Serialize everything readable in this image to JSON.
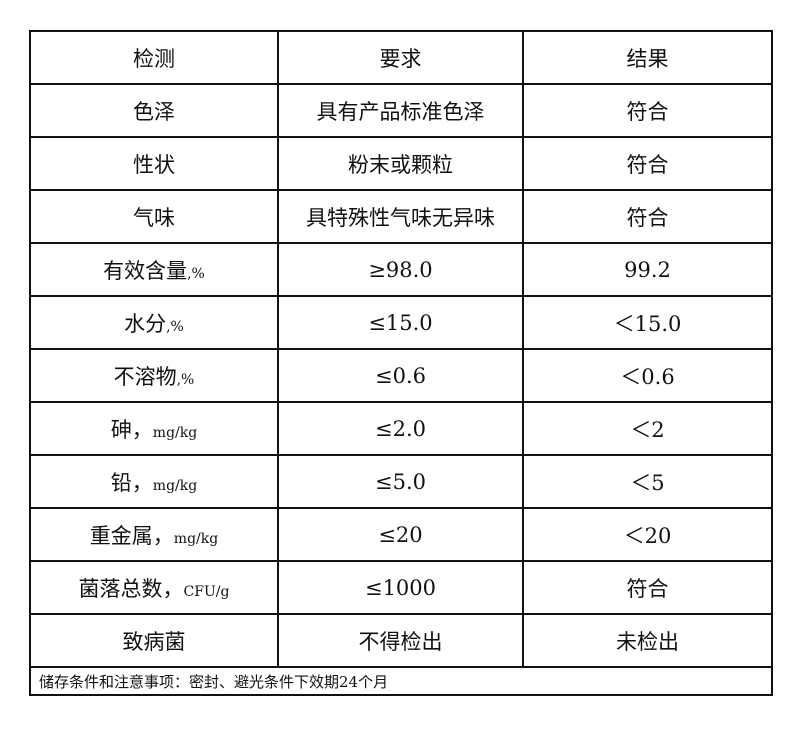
{
  "header": [
    "检测",
    "要求",
    "结果"
  ],
  "rows": [
    {
      "item": "色泽",
      "unit": "",
      "req": "具有产品标准色泽",
      "res": "符合"
    },
    {
      "item": "性状",
      "unit": "",
      "req": "粉末或颗粒",
      "res": "符合"
    },
    {
      "item": "气味",
      "unit": "",
      "req": "具特殊性气味无异味",
      "res": "符合"
    },
    {
      "item": "有效含量",
      "unit": ",%",
      "req": "≥98.0",
      "res": "99.2"
    },
    {
      "item": "水分",
      "unit": ",%",
      "req": "≤15.0",
      "res": "＜15.0"
    },
    {
      "item": "不溶物",
      "unit": ",%",
      "req": "≤0.6",
      "res": "＜0.6"
    },
    {
      "item": "砷，",
      "unit": "mg/kg",
      "req": "≤2.0",
      "res": "＜2"
    },
    {
      "item": "铅，",
      "unit": "mg/kg",
      "req": "≤5.0",
      "res": "＜5"
    },
    {
      "item": "重金属，",
      "unit": "mg/kg",
      "req": "≤20",
      "res": "＜20"
    },
    {
      "item": "菌落总数，",
      "unit": "CFU/g",
      "req": "≤1000",
      "res": "符合"
    },
    {
      "item": "致病菌",
      "unit": "",
      "req": "不得检出",
      "res": "未检出"
    }
  ],
  "footer": "储存条件和注意事项：密封、避光条件下效期24个月"
}
